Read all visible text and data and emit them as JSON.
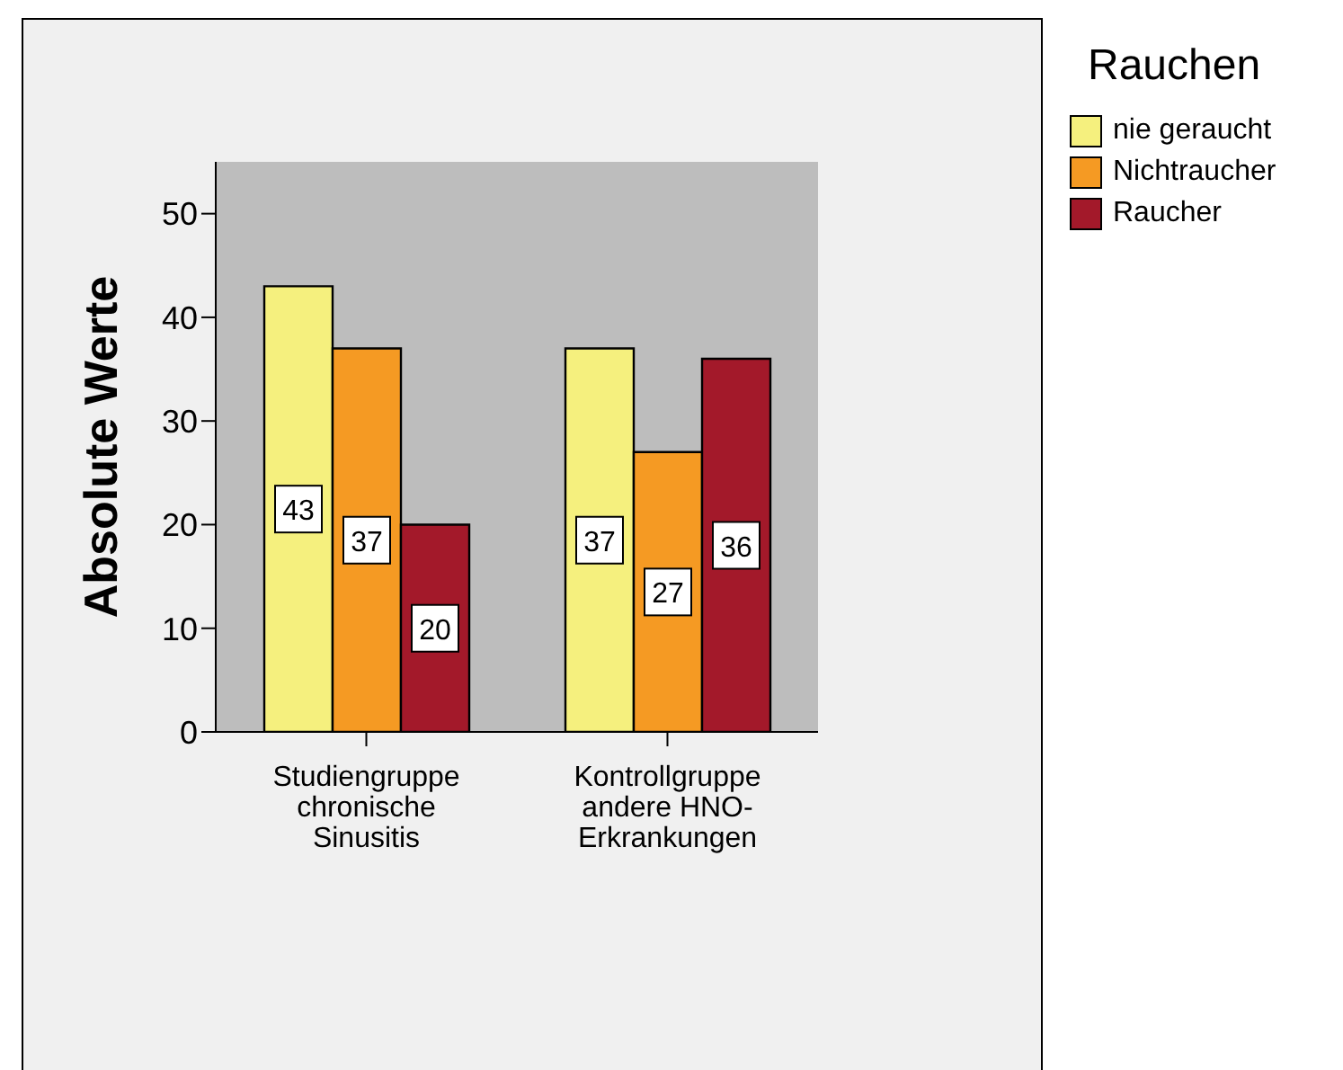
{
  "chart_data": {
    "type": "bar",
    "ylabel": "Absolute Werte",
    "legend_title": "Rauchen",
    "categories": [
      "Studiengruppe\nchronische\nSinusitis",
      "Kontrollgruppe\nandere HNO-\nErkrankungen"
    ],
    "series": [
      {
        "name": "nie geraucht",
        "color": "#f5f07e",
        "values": [
          43,
          37
        ]
      },
      {
        "name": "Nichtraucher",
        "color": "#f59a23",
        "values": [
          37,
          27
        ]
      },
      {
        "name": "Raucher",
        "color": "#a3192a",
        "values": [
          20,
          36
        ]
      }
    ],
    "ylim": [
      0,
      55
    ],
    "yticks": [
      0,
      10,
      20,
      30,
      40,
      50
    ],
    "data_labels": true,
    "legend": "top right",
    "grid": false
  }
}
